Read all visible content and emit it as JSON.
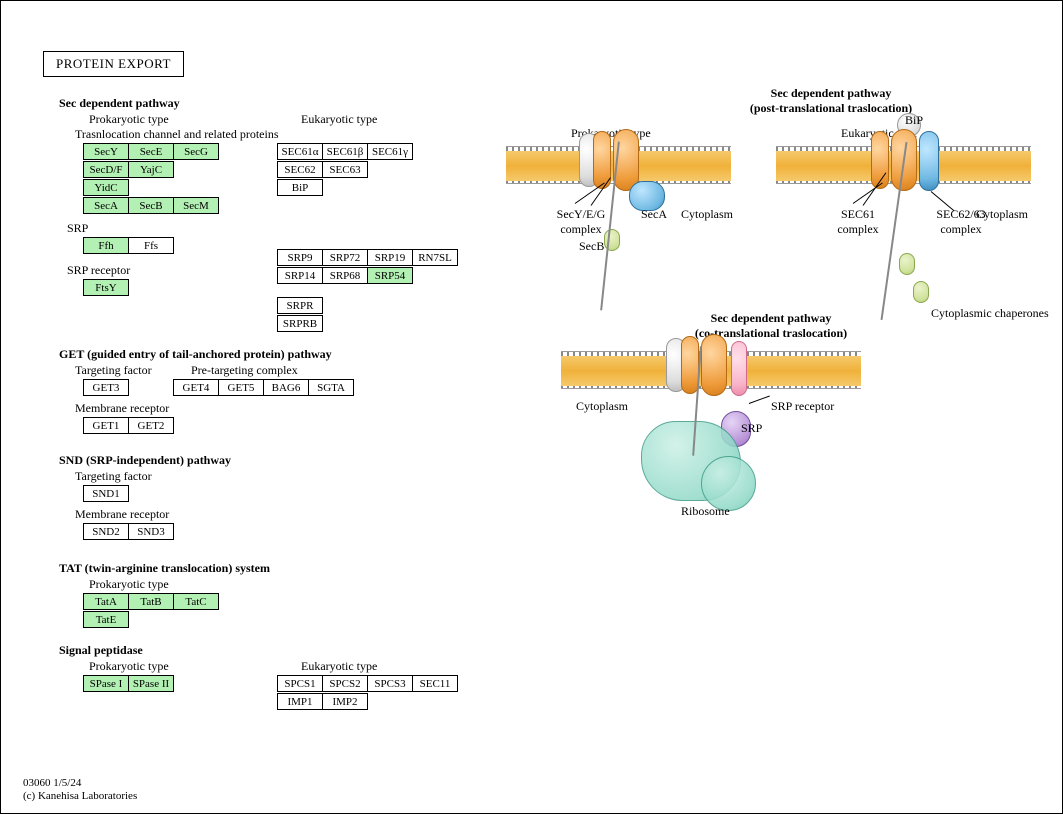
{
  "title": "PROTEIN EXPORT",
  "footer": {
    "id": "03060 1/5/24",
    "copyright": "(c) Kanehisa Laboratories"
  },
  "colors": {
    "highlight": "#b3f0b3",
    "border": "#000000",
    "membrane_head": "#888888",
    "membrane_fill": "#f0b13a",
    "orange": "#ef9b3a",
    "blue": "#6fb9e3",
    "grey": "#dddddd",
    "olive": "#cfe19a",
    "purple": "#b893d8",
    "teal": "#8fd9c7",
    "pink": "#f8b3c9"
  },
  "sec_pathway": {
    "heading": "Sec dependent pathway",
    "prok_label": "Prokaryotic type",
    "euk_label": "Eukaryotic type",
    "channel_label": "Trasnlocation channel and related proteins",
    "prok_rows": [
      [
        {
          "t": "SecY",
          "hl": true
        },
        {
          "t": "SecE",
          "hl": true
        },
        {
          "t": "SecG",
          "hl": true
        }
      ],
      [
        {
          "t": "SecD/F",
          "hl": true
        },
        {
          "t": "YajC",
          "hl": true
        }
      ],
      [
        {
          "t": "YidC",
          "hl": true
        }
      ],
      [
        {
          "t": "SecA",
          "hl": true
        },
        {
          "t": "SecB",
          "hl": true
        },
        {
          "t": "SecM",
          "hl": true
        }
      ]
    ],
    "euk_rows": [
      [
        {
          "t": "SEC61α"
        },
        {
          "t": "SEC61β"
        },
        {
          "t": "SEC61γ"
        }
      ],
      [
        {
          "t": "SEC62"
        },
        {
          "t": "SEC63"
        }
      ],
      [
        {
          "t": "BiP"
        }
      ]
    ],
    "srp_label": "SRP",
    "srp_prok": [
      [
        {
          "t": "Ffh",
          "hl": true
        },
        {
          "t": "Ffs"
        }
      ]
    ],
    "srp_euk": [
      [
        {
          "t": "SRP9"
        },
        {
          "t": "SRP72"
        },
        {
          "t": "SRP19"
        },
        {
          "t": "RN7SL"
        }
      ],
      [
        {
          "t": "SRP14"
        },
        {
          "t": "SRP68"
        },
        {
          "t": "SRP54",
          "hl": true
        }
      ]
    ],
    "srp_receptor_label": "SRP receptor",
    "srp_receptor_prok": [
      [
        {
          "t": "FtsY",
          "hl": true
        }
      ]
    ],
    "srp_receptor_euk": [
      [
        {
          "t": "SRPR"
        }
      ],
      [
        {
          "t": "SRPRB"
        }
      ]
    ]
  },
  "get_pathway": {
    "heading": "GET (guided entry of tail-anchored protein) pathway",
    "targeting_label": "Targeting factor",
    "pretarget_label": "Pre-targeting complex",
    "targeting": [
      [
        {
          "t": "GET3"
        }
      ]
    ],
    "pretarget": [
      [
        {
          "t": "GET4"
        },
        {
          "t": "GET5"
        },
        {
          "t": "BAG6"
        },
        {
          "t": "SGTA"
        }
      ]
    ],
    "receptor_label": "Membrane receptor",
    "receptor": [
      [
        {
          "t": "GET1"
        },
        {
          "t": "GET2"
        }
      ]
    ]
  },
  "snd_pathway": {
    "heading": "SND (SRP-independent) pathway",
    "targeting_label": "Targeting factor",
    "targeting": [
      [
        {
          "t": "SND1"
        }
      ]
    ],
    "receptor_label": "Membrane receptor",
    "receptor": [
      [
        {
          "t": "SND2"
        },
        {
          "t": "SND3"
        }
      ]
    ]
  },
  "tat_pathway": {
    "heading": "TAT (twin-arginine translocation) system",
    "prok_label": "Prokaryotic type",
    "rows": [
      [
        {
          "t": "TatA",
          "hl": true
        },
        {
          "t": "TatB",
          "hl": true
        },
        {
          "t": "TatC",
          "hl": true
        }
      ],
      [
        {
          "t": "TatE",
          "hl": true
        }
      ]
    ]
  },
  "peptidase": {
    "heading": "Signal peptidase",
    "prok_label": "Prokaryotic type",
    "euk_label": "Eukaryotic type",
    "prok": [
      [
        {
          "t": "SPase I",
          "hl": true
        },
        {
          "t": "SPase II",
          "hl": true
        }
      ]
    ],
    "euk": [
      [
        {
          "t": "SPCS1"
        },
        {
          "t": "SPCS2"
        },
        {
          "t": "SPCS3"
        },
        {
          "t": "SEC11"
        }
      ],
      [
        {
          "t": "IMP1"
        },
        {
          "t": "IMP2"
        }
      ]
    ]
  },
  "diagrams": {
    "post_title": "Sec dependent pathway",
    "post_sub": "(post-translational traslocation)",
    "co_title": "Sec dependent pathway",
    "co_sub": "(co-translational traslocation)",
    "prok_label": "Prokaryotic type",
    "euk_label": "Eukaryotic type",
    "cytoplasm": "Cytoplasm",
    "secyeg": "SecY/E/G\ncomplex",
    "seca": "SecA",
    "secb": "SecB",
    "sec61": "SEC61\ncomplex",
    "sec6263": "SEC62/63\ncomplex",
    "bip": "BiP",
    "chaperones": "Cytoplasmic chaperones",
    "srp": "SRP",
    "srp_receptor": "SRP receptor",
    "ribosome": "Ribosome"
  }
}
